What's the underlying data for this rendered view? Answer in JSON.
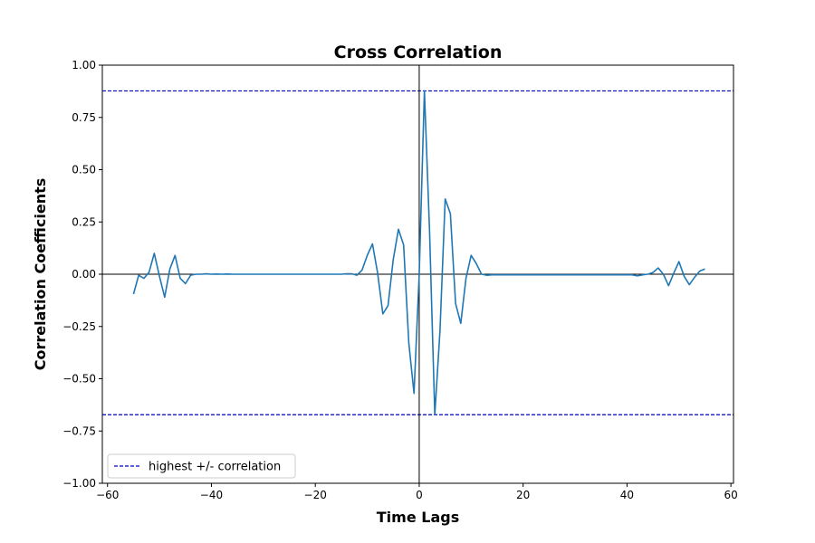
{
  "chart_data": {
    "type": "line",
    "title": "Cross Correlation",
    "xlabel": "Time Lags",
    "ylabel": "Correlation Coefficients",
    "xlim": [
      -61,
      60.5
    ],
    "ylim": [
      -1.0,
      1.0
    ],
    "xticks": [
      -60,
      -40,
      -20,
      0,
      20,
      40,
      60
    ],
    "xtick_labels": [
      "−60",
      "−40",
      "−20",
      "0",
      "20",
      "40",
      "60"
    ],
    "yticks": [
      -1.0,
      -0.75,
      -0.5,
      -0.25,
      0.0,
      0.25,
      0.5,
      0.75,
      1.0
    ],
    "ytick_labels": [
      "−1.00",
      "−0.75",
      "−0.50",
      "−0.25",
      "0.00",
      "0.25",
      "0.50",
      "0.75",
      "1.00"
    ],
    "grid": false,
    "legend_position": "lower-left",
    "reference_lines": {
      "horizontal": [
        {
          "y": 0.877,
          "style": "dashed",
          "color": "#0000cc"
        },
        {
          "y": -0.672,
          "style": "dashed",
          "color": "#0000cc"
        },
        {
          "y": 0.0,
          "style": "solid",
          "color": "#000000"
        }
      ],
      "vertical": [
        {
          "x": 0,
          "style": "solid",
          "color": "#000000"
        }
      ]
    },
    "series": [
      {
        "color": "#1f77b4",
        "x": [
          -55,
          -54,
          -53,
          -52,
          -51,
          -50,
          -49,
          -48,
          -47,
          -46,
          -45,
          -44,
          -43,
          -42,
          -41,
          -40,
          -39,
          -38,
          -37,
          -36,
          -35,
          -34,
          -33,
          -32,
          -31,
          -30,
          -29,
          -28,
          -27,
          -26,
          -25,
          -24,
          -23,
          -22,
          -21,
          -20,
          -19,
          -18,
          -17,
          -16,
          -15,
          -14,
          -13,
          -12,
          -11,
          -10,
          -9,
          -8,
          -7,
          -6,
          -5,
          -4,
          -3,
          -2,
          -1,
          0,
          1,
          2,
          3,
          4,
          5,
          6,
          7,
          8,
          9,
          10,
          11,
          12,
          13,
          14,
          15,
          16,
          17,
          18,
          19,
          20,
          21,
          22,
          23,
          24,
          25,
          26,
          27,
          28,
          29,
          30,
          31,
          32,
          33,
          34,
          35,
          36,
          37,
          38,
          39,
          40,
          41,
          42,
          43,
          44,
          45,
          46,
          47,
          48,
          49,
          50,
          51,
          52,
          53,
          54,
          55
        ],
        "y": [
          -0.095,
          -0.005,
          -0.02,
          0.01,
          0.1,
          -0.01,
          -0.11,
          0.025,
          0.09,
          -0.02,
          -0.045,
          -0.005,
          0.0,
          0.0,
          0.002,
          0.0,
          0.001,
          0.0,
          0.001,
          0.0,
          0.0,
          0.0,
          0.0,
          0.0,
          0.0,
          0.0,
          0.0,
          0.0,
          0.0,
          0.0,
          0.0,
          0.0,
          0.0,
          0.0,
          0.0,
          0.0,
          0.0,
          0.0,
          0.0,
          0.0,
          0.0,
          0.002,
          0.002,
          -0.005,
          0.02,
          0.09,
          0.145,
          0.005,
          -0.19,
          -0.15,
          0.07,
          0.215,
          0.14,
          -0.33,
          -0.57,
          0.0,
          0.877,
          0.2,
          -0.672,
          -0.27,
          0.36,
          0.29,
          -0.14,
          -0.235,
          -0.02,
          0.09,
          0.05,
          0.0,
          -0.005,
          -0.003,
          -0.003,
          -0.003,
          -0.003,
          -0.003,
          -0.003,
          -0.003,
          -0.003,
          -0.003,
          -0.003,
          -0.003,
          -0.003,
          -0.003,
          -0.003,
          -0.003,
          -0.003,
          -0.003,
          -0.003,
          -0.003,
          -0.003,
          -0.003,
          -0.003,
          -0.003,
          -0.003,
          -0.003,
          -0.003,
          -0.003,
          -0.003,
          -0.008,
          -0.003,
          0.0,
          0.008,
          0.03,
          0.0,
          -0.055,
          0.005,
          0.06,
          -0.01,
          -0.05,
          -0.015,
          0.015,
          0.025
        ]
      },
      {
        "name": "highest +/- correlation",
        "color": "#0000cc",
        "style": "dashed"
      }
    ]
  }
}
